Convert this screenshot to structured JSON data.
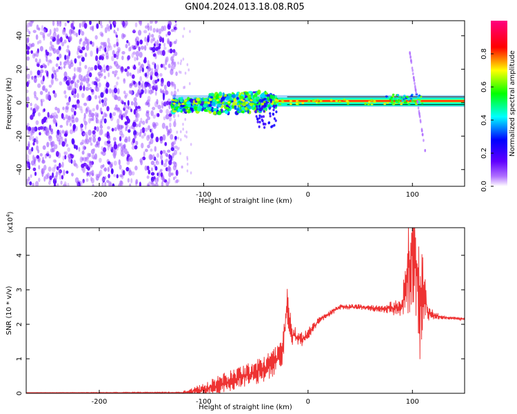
{
  "title": "GN04.2024.013.18.08.R05",
  "chart_data": [
    {
      "type": "heatmap",
      "xlabel": "Height of straight line (km)",
      "ylabel": "Frequency (Hz)",
      "xlim": [
        -270,
        150
      ],
      "ylim": [
        -50,
        49
      ],
      "x_ticks": [
        -200,
        -100,
        0,
        100
      ],
      "y_ticks": [
        -40,
        -20,
        0,
        20,
        40
      ],
      "colorbar": {
        "label": "Normalized spectral amplitude",
        "range": [
          0,
          1
        ],
        "ticks": [
          0.0,
          0.2,
          0.4,
          0.6,
          0.8
        ],
        "colors": [
          "#ffffff",
          "#7a00ff",
          "#0000ff",
          "#00ffff",
          "#00ff00",
          "#ffff00",
          "#ff0000",
          "#ff0080"
        ]
      },
      "regions": [
        {
          "x": [
            -270,
            -125
          ],
          "freq": [
            -50,
            49
          ],
          "amplitude": 0.15
        },
        {
          "x": [
            -130,
            -30
          ],
          "freq": [
            -8,
            8
          ],
          "amplitude": 0.5
        },
        {
          "x": [
            -30,
            150
          ],
          "freq": [
            -2,
            3
          ],
          "amplitude": 0.9
        },
        {
          "x": [
            97,
            113
          ],
          "freq": [
            -32,
            32
          ],
          "amplitude": 0.1
        }
      ]
    },
    {
      "type": "line",
      "xlabel": "Height of straight line (km)",
      "ylabel": "SNR (10 * v/v)",
      "y_multiplier": "(x10",
      "y_multiplier_exp": "4",
      "y_multiplier_close": ")",
      "xlim": [
        -270,
        150
      ],
      "ylim": [
        0,
        4.8
      ],
      "x_ticks": [
        -200,
        -100,
        0,
        100
      ],
      "y_ticks": [
        0,
        1,
        2,
        3,
        4
      ],
      "color": "#ee3333",
      "series": [
        {
          "x": [
            -270,
            -120,
            -100,
            -80,
            -60,
            -40,
            -25,
            -20,
            -15,
            -5,
            10,
            30,
            50,
            70,
            90,
            98,
            102,
            106,
            110,
            115,
            130,
            150
          ],
          "y": [
            0.02,
            0.02,
            0.1,
            0.3,
            0.5,
            0.75,
            1.1,
            2.5,
            1.7,
            1.55,
            2.1,
            2.5,
            2.5,
            2.45,
            2.5,
            3.9,
            4.7,
            2.4,
            3.2,
            2.3,
            2.2,
            2.15
          ],
          "noise": [
            0,
            0.02,
            0.2,
            0.3,
            0.35,
            0.4,
            0.45,
            0.6,
            0.3,
            0.2,
            0.1,
            0.08,
            0.08,
            0.1,
            0.3,
            1.6,
            2.0,
            2.2,
            1.2,
            0.2,
            0.05,
            0.04
          ]
        }
      ]
    }
  ]
}
